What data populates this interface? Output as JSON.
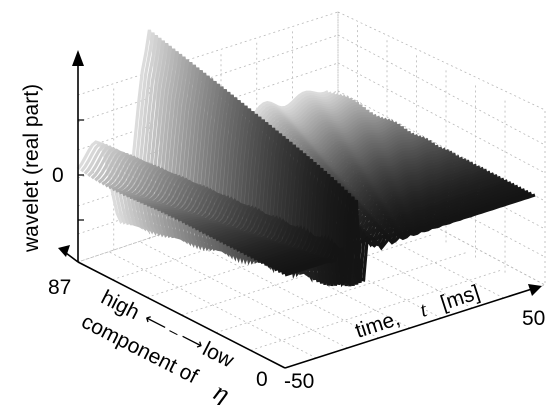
{
  "chart_data": {
    "type": "surface",
    "title": "",
    "xlabel": "time, t  [ms]",
    "ylabel": "high ⟵ ⟶ low  component of η",
    "zlabel": "wavelet (real part)",
    "xlim": [
      -50,
      50
    ],
    "ylim": [
      0,
      87
    ],
    "z_ticks": [
      "0"
    ],
    "x_ticks": [
      "-50",
      "50"
    ],
    "y_ticks": [
      "0",
      "87"
    ],
    "grid": true,
    "colormap": "gray",
    "description_values": {
      "peak_time_ms": -20,
      "peak_component": 87,
      "peak_value": 1.0,
      "decay": "oscillatory damped toward t = 50 ms, narrower at low components"
    }
  },
  "labels": {
    "zaxis": "wavelet (real part)",
    "zero": "0",
    "time_prefix": "time, ",
    "time_t": "t",
    "time_unit": "  [ms]",
    "xmin": "-50",
    "xmax": "50",
    "ymax": "87",
    "ymin": "0",
    "high": "high",
    "arrow": "⟵ – ⟶",
    "low": "low",
    "component": "component of ",
    "eta": "η"
  }
}
